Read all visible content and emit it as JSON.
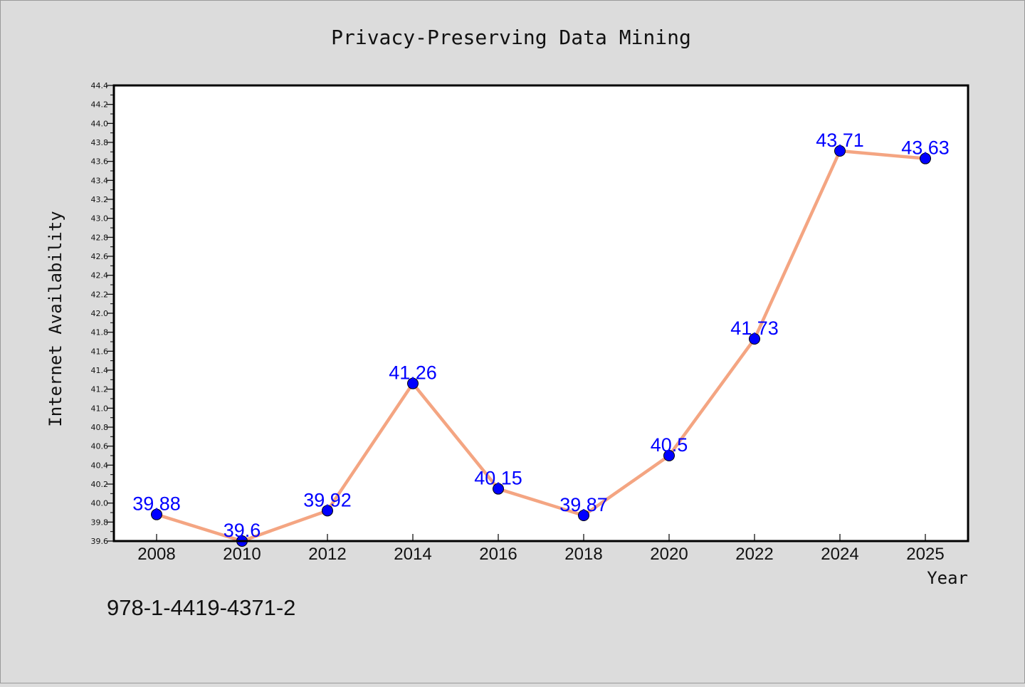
{
  "chart_data": {
    "type": "line",
    "title": "Privacy-Preserving Data Mining",
    "xlabel": "Year",
    "ylabel": "Internet Availability",
    "categories": [
      "2008",
      "2010",
      "2012",
      "2014",
      "2016",
      "2018",
      "2020",
      "2022",
      "2024",
      "2025"
    ],
    "series": [
      {
        "values": [
          39.88,
          39.6,
          39.92,
          41.26,
          40.15,
          39.87,
          40.5,
          41.73,
          43.71,
          43.63
        ],
        "labels": [
          "39.88",
          "39.6",
          "39.92",
          "41.26",
          "40.15",
          "39.87",
          "40.5",
          "41.73",
          "43.71",
          "43.63"
        ],
        "line_color": "#f4a582",
        "marker_color": "#0000ff",
        "label_color": "#0000ff"
      }
    ],
    "ylim": [
      39.6,
      44.4
    ],
    "y_ticks": [
      "39.6",
      "39.8",
      "40.0",
      "40.2",
      "40.4",
      "40.6",
      "40.8",
      "41.0",
      "41.2",
      "41.4",
      "41.6",
      "41.8",
      "42.0",
      "42.2",
      "42.4",
      "42.6",
      "42.8",
      "43.0",
      "43.2",
      "43.4",
      "43.6",
      "43.8",
      "44.0",
      "44.2",
      "44.4"
    ],
    "grid": false,
    "legend": "none"
  },
  "footer_text": "978-1-4419-4371-2",
  "colors": {
    "background": "#dcdcdc",
    "plot_background": "#ffffff"
  }
}
